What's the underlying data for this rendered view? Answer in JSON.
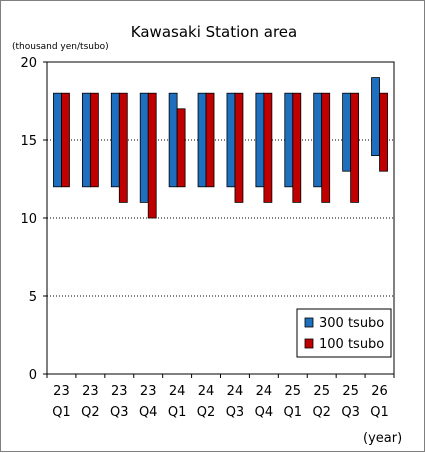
{
  "chart_data": {
    "type": "bar",
    "subtype": "floating-range",
    "title": "Kawasaki Station area",
    "ylabel": "(thousand yen/tsubo)",
    "xlabel": "(year)",
    "ylim": [
      0,
      20
    ],
    "yticks": [
      0,
      5,
      10,
      15,
      20
    ],
    "grid": true,
    "legend_position": "bottom-right",
    "categories": [
      {
        "year": "23",
        "quarter": "Q1"
      },
      {
        "year": "23",
        "quarter": "Q2"
      },
      {
        "year": "23",
        "quarter": "Q3"
      },
      {
        "year": "23",
        "quarter": "Q4"
      },
      {
        "year": "24",
        "quarter": "Q1"
      },
      {
        "year": "24",
        "quarter": "Q2"
      },
      {
        "year": "24",
        "quarter": "Q3"
      },
      {
        "year": "24",
        "quarter": "Q4"
      },
      {
        "year": "25",
        "quarter": "Q1"
      },
      {
        "year": "25",
        "quarter": "Q2"
      },
      {
        "year": "25",
        "quarter": "Q3"
      },
      {
        "year": "26",
        "quarter": "Q1"
      }
    ],
    "series": [
      {
        "name": "300 tsubo",
        "color": "#1f6fbf",
        "ranges": [
          [
            12,
            18
          ],
          [
            12,
            18
          ],
          [
            12,
            18
          ],
          [
            11,
            18
          ],
          [
            12,
            18
          ],
          [
            12,
            18
          ],
          [
            12,
            18
          ],
          [
            12,
            18
          ],
          [
            12,
            18
          ],
          [
            12,
            18
          ],
          [
            13,
            18
          ],
          [
            14,
            19
          ]
        ]
      },
      {
        "name": "100 tsubo",
        "color": "#c00000",
        "ranges": [
          [
            12,
            18
          ],
          [
            12,
            18
          ],
          [
            11,
            18
          ],
          [
            10,
            18
          ],
          [
            12,
            17
          ],
          [
            12,
            18
          ],
          [
            11,
            18
          ],
          [
            11,
            18
          ],
          [
            11,
            18
          ],
          [
            11,
            18
          ],
          [
            11,
            18
          ],
          [
            13,
            18
          ]
        ]
      }
    ]
  }
}
